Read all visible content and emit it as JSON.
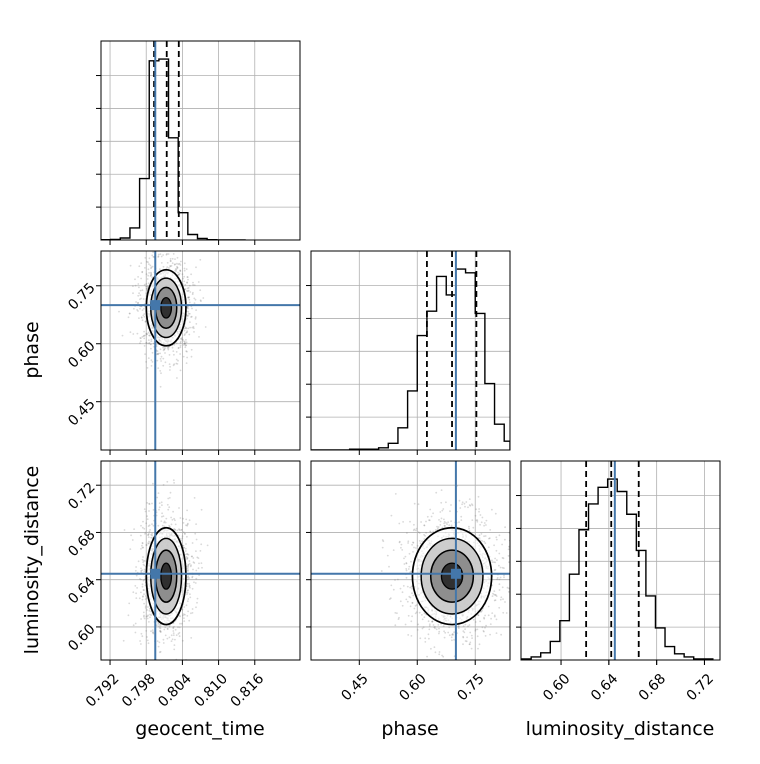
{
  "chart_data": {
    "type": "corner",
    "parameters": [
      "geocent_time",
      "phase",
      "luminosity_distance"
    ],
    "truths": {
      "geocent_time": 0.7995,
      "phase": 0.7,
      "luminosity_distance": 0.645
    },
    "colors": {
      "truth": "#4477aa",
      "hist": "#000000",
      "grid": "#b0b0b0",
      "points": "#888888"
    },
    "marginals": {
      "geocent_time": {
        "xlim": [
          0.7905,
          0.8235
        ],
        "quantiles": [
          0.7993,
          0.8014,
          0.8034
        ],
        "bin_edges": [
          0.7905,
          0.7921,
          0.7937,
          0.7953,
          0.7969,
          0.7985,
          0.8001,
          0.8017,
          0.8033,
          0.8049,
          0.8065,
          0.8081,
          0.8097,
          0.8113,
          0.8129,
          0.8145
        ],
        "counts": [
          1,
          2,
          8,
          48,
          245,
          715,
          722,
          408,
          109,
          22,
          6,
          1,
          0,
          0,
          0
        ]
      },
      "phase": {
        "xlim": [
          0.325,
          0.84
        ],
        "quantiles": [
          0.625,
          0.69,
          0.753
        ],
        "bin_edges": [
          0.325,
          0.35,
          0.375,
          0.4,
          0.425,
          0.45,
          0.475,
          0.5,
          0.525,
          0.55,
          0.575,
          0.6,
          0.625,
          0.65,
          0.675,
          0.7,
          0.725,
          0.75,
          0.775,
          0.8,
          0.825,
          0.84
        ],
        "counts": [
          0,
          0,
          0,
          0,
          1,
          1,
          1,
          3,
          9,
          30,
          80,
          155,
          188,
          235,
          210,
          245,
          240,
          185,
          90,
          35,
          12
        ]
      },
      "luminosity_distance": {
        "xlim": [
          0.5665,
          0.733
        ],
        "quantiles": [
          0.621,
          0.642,
          0.665
        ],
        "bin_edges": [
          0.567,
          0.575,
          0.583,
          0.591,
          0.599,
          0.607,
          0.615,
          0.623,
          0.631,
          0.639,
          0.647,
          0.655,
          0.663,
          0.671,
          0.679,
          0.687,
          0.695,
          0.703,
          0.711,
          0.719,
          0.727
        ],
        "counts": [
          1,
          3,
          7,
          18,
          38,
          83,
          126,
          151,
          167,
          175,
          163,
          141,
          106,
          62,
          31,
          13,
          6,
          3,
          1,
          1
        ]
      }
    },
    "joints": [
      {
        "x": "geocent_time",
        "y": "phase",
        "center": [
          0.8013,
          0.693
        ],
        "spread": [
          0.0016,
          0.048
        ]
      },
      {
        "x": "geocent_time",
        "y": "luminosity_distance",
        "center": [
          0.8013,
          0.643
        ],
        "spread": [
          0.0016,
          0.02
        ]
      },
      {
        "x": "phase",
        "y": "luminosity_distance",
        "center": [
          0.69,
          0.643
        ],
        "spread": [
          0.05,
          0.02
        ]
      }
    ],
    "axes": {
      "geocent_time": {
        "ticks": [
          "0.792",
          "0.798",
          "0.804",
          "0.810",
          "0.816"
        ],
        "tick_values": [
          0.792,
          0.798,
          0.804,
          0.81,
          0.816
        ]
      },
      "phase_x": {
        "ticks": [
          "0.45",
          "0.60",
          "0.75"
        ],
        "tick_values": [
          0.45,
          0.6,
          0.75
        ]
      },
      "phase_y": {
        "ticks": [
          "0.45",
          "0.60",
          "0.75"
        ],
        "tick_values": [
          0.45,
          0.6,
          0.75
        ],
        "ylim": [
          0.325,
          0.84
        ]
      },
      "luminosity_distance_x": {
        "ticks": [
          "0.60",
          "0.64",
          "0.68",
          "0.72"
        ],
        "tick_values": [
          0.6,
          0.64,
          0.68,
          0.72
        ]
      },
      "luminosity_distance_y": {
        "ticks": [
          "0.60",
          "0.64",
          "0.68",
          "0.72"
        ],
        "tick_values": [
          0.6,
          0.64,
          0.68,
          0.72
        ],
        "ylim": [
          0.572,
          0.7405
        ]
      }
    },
    "labels": {
      "x": [
        "geocent_time",
        "phase",
        "luminosity_distance"
      ],
      "y": [
        "phase",
        "luminosity_distance"
      ]
    },
    "grid": true
  }
}
